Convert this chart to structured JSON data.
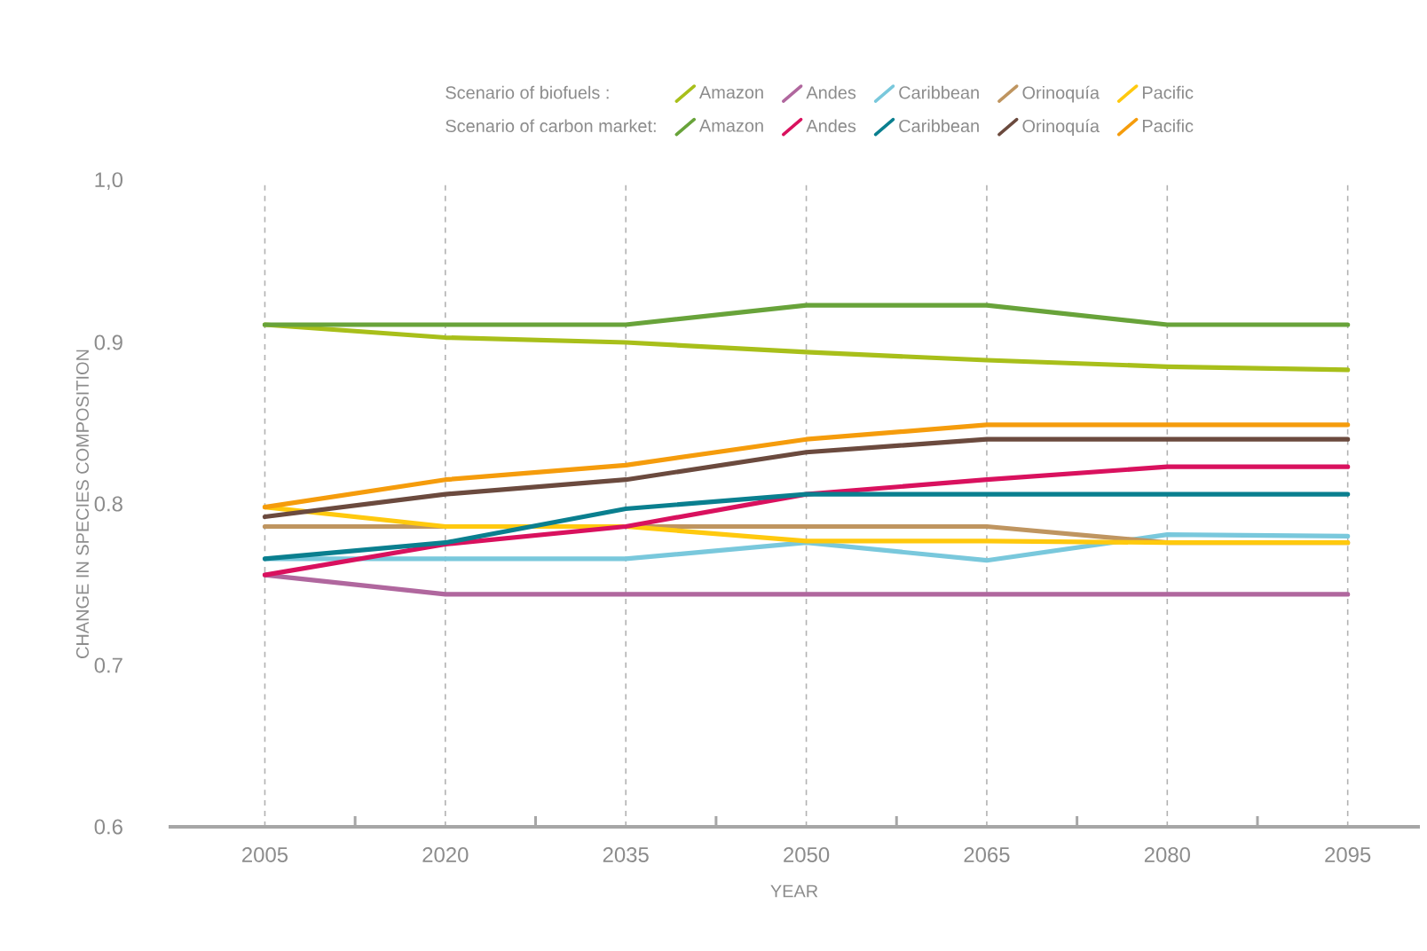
{
  "chart_data": {
    "type": "line",
    "xlabel": "YEAR",
    "ylabel": "CHANGE IN SPECIES COMPOSITION",
    "annotations": [
      "Scenario of biofuels :",
      "Scenario of carbon market:"
    ],
    "x": [
      2005,
      2020,
      2035,
      2050,
      2065,
      2080,
      2095
    ],
    "xlim": [
      1997,
      2101
    ],
    "xticks": [
      2005,
      2020,
      2035,
      2050,
      2065,
      2080,
      2095
    ],
    "ylim": [
      0.6,
      1.0
    ],
    "yticks": [
      0.6,
      0.7,
      0.8,
      0.9,
      {
        "value": 1.0,
        "label": "1,0"
      }
    ],
    "grid": "x",
    "legend": "top",
    "marker": "none",
    "line_style": "solid",
    "series": [
      {
        "name": "Amazon",
        "color": "#a8bf1a",
        "values": [
          0.911,
          0.903,
          0.9,
          0.894,
          0.889,
          0.885,
          0.883
        ]
      },
      {
        "name": "Andes",
        "color": "#b0679e",
        "values": [
          0.756,
          0.744,
          0.744,
          0.744,
          0.744,
          0.744,
          0.744
        ]
      },
      {
        "name": "Caribbean",
        "color": "#79c8dc",
        "values": [
          0.766,
          0.766,
          0.766,
          0.776,
          0.765,
          0.781,
          0.78
        ]
      },
      {
        "name": "Orinoquía",
        "color": "#bf9560",
        "values": [
          0.786,
          0.786,
          0.786,
          0.786,
          0.786,
          0.776,
          0.776
        ]
      },
      {
        "name": "Pacific",
        "color": "#ffc90e",
        "values": [
          0.798,
          0.786,
          0.786,
          0.777,
          0.777,
          0.776,
          0.776
        ]
      },
      {
        "name": "Amazon",
        "color": "#68a33a",
        "values": [
          0.911,
          0.911,
          0.911,
          0.923,
          0.923,
          0.911,
          0.911
        ]
      },
      {
        "name": "Andes",
        "color": "#d9115e",
        "values": [
          0.756,
          0.775,
          0.786,
          0.806,
          0.815,
          0.823,
          0.823
        ]
      },
      {
        "name": "Caribbean",
        "color": "#0a7f8f",
        "values": [
          0.766,
          0.776,
          0.797,
          0.806,
          0.806,
          0.806,
          0.806
        ]
      },
      {
        "name": "Orinoquía",
        "color": "#6b4a3e",
        "values": [
          0.792,
          0.806,
          0.815,
          0.832,
          0.84,
          0.84,
          0.84
        ]
      },
      {
        "name": "Pacific",
        "color": "#f59c0c",
        "values": [
          0.798,
          0.815,
          0.824,
          0.84,
          0.849,
          0.849,
          0.849
        ]
      }
    ]
  }
}
